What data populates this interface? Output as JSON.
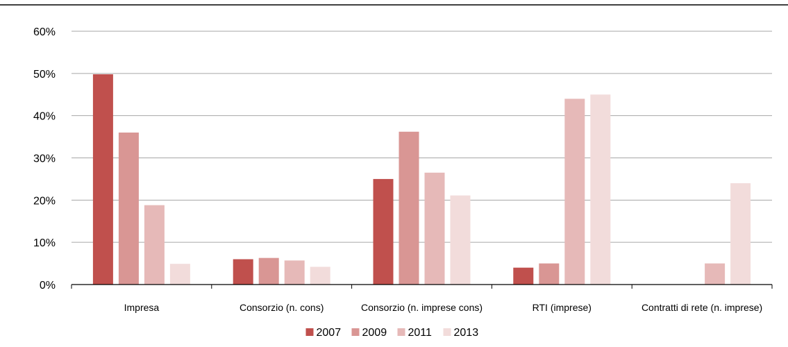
{
  "chart_data": {
    "type": "bar",
    "title": "",
    "xlabel": "",
    "ylabel": "",
    "ylim": [
      0,
      60
    ],
    "y_ticks": [
      "0%",
      "10%",
      "20%",
      "30%",
      "40%",
      "50%",
      "60%"
    ],
    "grid": true,
    "legend_position": "bottom",
    "categories": [
      "Impresa",
      "Consorzio (n. cons)",
      "Consorzio (n. imprese cons)",
      "RTI (imprese)",
      "Contratti di rete (n. imprese)"
    ],
    "series": [
      {
        "name": "2007",
        "color": "#c0504d",
        "values": [
          49.8,
          6.0,
          25.0,
          4.0,
          null
        ]
      },
      {
        "name": "2009",
        "color": "#d99694",
        "values": [
          36.0,
          6.3,
          36.2,
          5.0,
          null
        ]
      },
      {
        "name": "2011",
        "color": "#e6b9b8",
        "values": [
          18.8,
          5.7,
          26.5,
          44.0,
          5.0
        ]
      },
      {
        "name": "2013",
        "color": "#f2dcdb",
        "values": [
          4.9,
          4.2,
          21.1,
          45.0,
          24.0
        ]
      }
    ]
  },
  "colors": {
    "grid": "#a6a6a6",
    "axis": "#000000",
    "top_rule": "#000000"
  }
}
